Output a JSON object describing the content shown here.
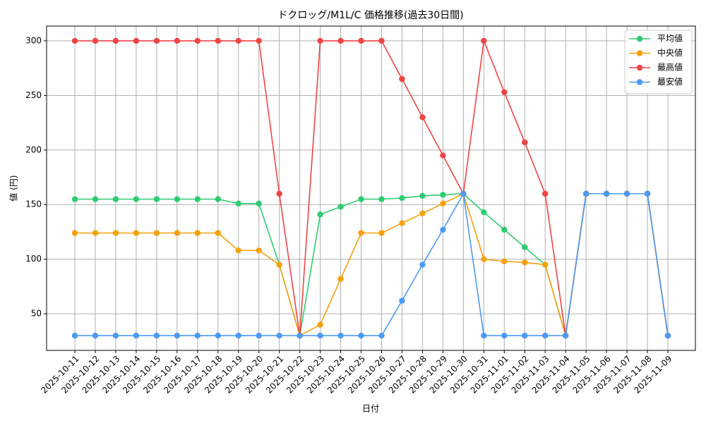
{
  "chart_data": {
    "type": "line",
    "title": "ドクロッグ/M1L/C 価格推移(過去30日間)",
    "x_label": "日付",
    "y_label": "値 (円)",
    "categories": [
      "2025-10-11",
      "2025-10-12",
      "2025-10-13",
      "2025-10-14",
      "2025-10-15",
      "2025-10-16",
      "2025-10-17",
      "2025-10-18",
      "2025-10-19",
      "2025-10-20",
      "2025-10-21",
      "2025-10-22",
      "2025-10-23",
      "2025-10-24",
      "2025-10-25",
      "2025-10-26",
      "2025-10-27",
      "2025-10-28",
      "2025-10-29",
      "2025-10-30",
      "2025-10-31",
      "2025-11-01",
      "2025-11-02",
      "2025-11-03",
      "2025-11-04",
      "2025-11-05",
      "2025-11-06",
      "2025-11-07",
      "2025-11-08",
      "2025-11-09"
    ],
    "series": [
      {
        "name": "平均値",
        "color": "#2ecc71",
        "values": [
          155,
          155,
          155,
          155,
          155,
          155,
          155,
          155,
          151,
          151,
          95,
          30,
          141,
          148,
          155,
          155,
          156,
          158,
          159,
          160,
          143,
          127,
          111,
          95,
          30,
          160,
          160,
          160,
          160,
          30
        ]
      },
      {
        "name": "中央値",
        "color": "#f5a10d",
        "values": [
          124,
          124,
          124,
          124,
          124,
          124,
          124,
          124,
          108,
          108,
          95,
          30,
          40,
          82,
          124,
          124,
          133,
          142,
          151,
          160,
          100,
          98,
          97,
          95,
          30,
          160,
          160,
          160,
          160,
          30
        ]
      },
      {
        "name": "最高値",
        "color": "#ef4444",
        "values": [
          300,
          300,
          300,
          300,
          300,
          300,
          300,
          300,
          300,
          300,
          160,
          30,
          300,
          300,
          300,
          300,
          265,
          230,
          195,
          160,
          300,
          253,
          207,
          160,
          30,
          160,
          160,
          160,
          160,
          30
        ]
      },
      {
        "name": "最安値",
        "color": "#4b9af5",
        "values": [
          30,
          30,
          30,
          30,
          30,
          30,
          30,
          30,
          30,
          30,
          30,
          30,
          30,
          30,
          30,
          30,
          62,
          95,
          127,
          160,
          30,
          30,
          30,
          30,
          30,
          160,
          160,
          160,
          160,
          30
        ]
      }
    ],
    "ylim": [
      16.5,
      313.5
    ],
    "yticks": [
      50,
      100,
      150,
      200,
      250,
      300
    ],
    "grid": true,
    "legend": "upper right"
  }
}
